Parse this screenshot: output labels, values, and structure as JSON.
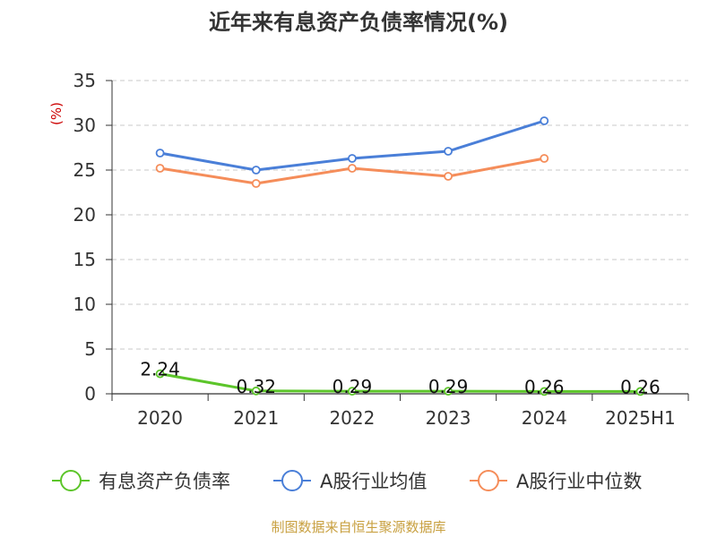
{
  "chart_data": {
    "type": "line",
    "title": "近年来有息资产负债率情况(%)",
    "unit_label": "(%)",
    "categories": [
      "2020",
      "2021",
      "2022",
      "2023",
      "2024",
      "2025H1"
    ],
    "yticks": [
      "0",
      "5",
      "10",
      "15",
      "20",
      "25",
      "30",
      "35"
    ],
    "ylim": [
      0,
      35
    ],
    "grid": true,
    "legend_position": "bottom",
    "series": [
      {
        "name": "有息资产负债率",
        "color": "#5cc52a",
        "values": [
          2.24,
          0.32,
          0.29,
          0.29,
          0.26,
          0.26
        ],
        "labels": [
          "2.24",
          "0.32",
          "0.29",
          "0.29",
          "0.26",
          "0.26"
        ]
      },
      {
        "name": "A股行业均值",
        "color": "#4a7fd8",
        "values": [
          26.9,
          25.0,
          26.3,
          27.1,
          30.5,
          null
        ]
      },
      {
        "name": "A股行业中位数",
        "color": "#f58d5a",
        "values": [
          25.2,
          23.5,
          25.2,
          24.3,
          26.3,
          null
        ]
      }
    ]
  },
  "source": "制图数据来自恒生聚源数据库"
}
